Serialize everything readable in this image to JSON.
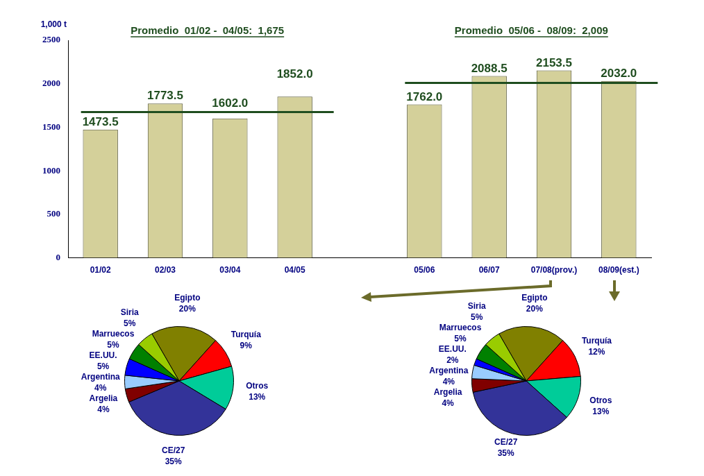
{
  "chart_data": [
    {
      "type": "bar",
      "ylabel": "1,000 t",
      "categories": [
        "01/02",
        "02/03",
        "03/04",
        "04/05",
        null,
        "05/06",
        "06/07",
        "07/08(prov.)",
        "08/09(est.)"
      ],
      "values": [
        1473.5,
        1773.5,
        1602.0,
        1852.0,
        null,
        1762.0,
        2088.5,
        2153.5,
        2032.0
      ],
      "value_labels": [
        "1473.5",
        "1773.5",
        "1602.0",
        "1852.0",
        null,
        "1762.0",
        "2088.5",
        "2153.5",
        "2032.0"
      ],
      "color": "#d4d09a",
      "ylim": [
        0,
        2500
      ],
      "yticks": [
        0,
        500,
        1000,
        1500,
        2000,
        2500
      ],
      "grid": false,
      "legend": false,
      "ref_lines": [
        {
          "axis": "y",
          "value": 1675,
          "label": "Promedio  01/02 -  04/05:  1,675",
          "color": "#1f4d1f"
        },
        {
          "axis": "y",
          "value": 2009,
          "label": "Promedio  05/06 -  08/09:  2,009",
          "color": "#1f4d1f"
        }
      ]
    },
    {
      "type": "pie",
      "categories": [
        "Egipto",
        "Turquía",
        "Otros",
        "CE/27",
        "Argelia",
        "Argentina",
        "EE.UU.",
        "Marruecos",
        "Siria"
      ],
      "values": [
        20,
        9,
        13,
        35,
        4,
        4,
        5,
        5,
        5
      ],
      "value_labels": [
        "20%",
        "9%",
        "13%",
        "35%",
        "4%",
        "4%",
        "5%",
        "5%",
        "5%"
      ],
      "colors": [
        "#808000",
        "#ff0000",
        "#00cc99",
        "#333399",
        "#800000",
        "#99ccff",
        "#0000ff",
        "#008000",
        "#99cc00"
      ],
      "legend": false
    },
    {
      "type": "pie",
      "categories": [
        "Egipto",
        "Turquía",
        "Otros",
        "CE/27",
        "Argelia",
        "Argentina",
        "EE.UU.",
        "Marruecos",
        "Siria"
      ],
      "values": [
        20,
        12,
        13,
        35,
        4,
        4,
        2,
        5,
        5
      ],
      "value_labels": [
        "20%",
        "12%",
        "13%",
        "35%",
        "4%",
        "4%",
        "2%",
        "5%",
        "5%"
      ],
      "colors": [
        "#808000",
        "#ff0000",
        "#00cc99",
        "#333399",
        "#800000",
        "#99ccff",
        "#0000ff",
        "#008000",
        "#99cc00"
      ],
      "legend": false
    }
  ]
}
